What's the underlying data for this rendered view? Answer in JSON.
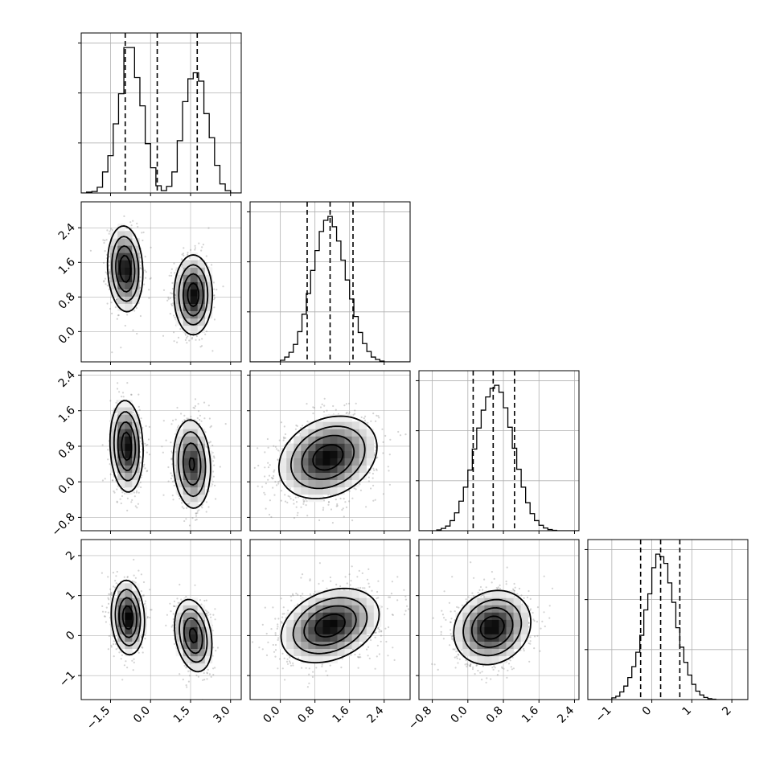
{
  "chart_data": {
    "type": "corner",
    "parameters": 4,
    "grid": true,
    "colors": {
      "line": "#000000",
      "grid": "#b0b0b0",
      "points": "#808080",
      "background": "#ffffff"
    },
    "ranges": [
      [
        -2.6,
        3.4
      ],
      [
        -0.7,
        3.0
      ],
      [
        -1.1,
        2.5
      ],
      [
        -1.6,
        2.4
      ]
    ],
    "ticks": [
      {
        "values": [
          -1.5,
          0.0,
          1.5,
          3.0
        ],
        "labels": [
          "−1.5",
          "0.0",
          "1.5",
          "3.0"
        ]
      },
      {
        "values": [
          0.0,
          0.8,
          1.6,
          2.4
        ],
        "labels": [
          "0.0",
          "0.8",
          "1.6",
          "2.4"
        ]
      },
      {
        "values": [
          -0.8,
          0.0,
          0.8,
          1.6,
          2.4
        ],
        "labels": [
          "−0.8",
          "0.0",
          "0.8",
          "1.6",
          "2.4"
        ]
      },
      {
        "values": [
          -1,
          0,
          1,
          2
        ],
        "labels": [
          "−1",
          "0",
          "1",
          "2"
        ]
      }
    ],
    "quantiles": [
      [
        -0.95,
        0.25,
        1.75
      ],
      [
        0.62,
        1.15,
        1.68
      ],
      [
        0.12,
        0.57,
        1.05
      ],
      [
        -0.28,
        0.22,
        0.7
      ]
    ],
    "histograms": [
      {
        "bins": [
          -2.6,
          -2.4,
          -2.2,
          -2.0,
          -1.8,
          -1.6,
          -1.4,
          -1.2,
          -1.0,
          -0.8,
          -0.6,
          -0.4,
          -0.2,
          0.0,
          0.2,
          0.4,
          0.6,
          0.8,
          1.0,
          1.2,
          1.4,
          1.6,
          1.8,
          2.0,
          2.2,
          2.4,
          2.6,
          2.8,
          3.0,
          3.2,
          3.4
        ],
        "counts": [
          0,
          15,
          25,
          95,
          350,
          620,
          1150,
          1650,
          2420,
          2420,
          1920,
          1450,
          820,
          420,
          120,
          40,
          110,
          350,
          870,
          1520,
          1900,
          2000,
          1860,
          1320,
          920,
          460,
          150,
          40,
          0,
          0
        ]
      },
      {
        "bins": [
          -0.7,
          -0.6,
          -0.5,
          -0.4,
          -0.3,
          -0.2,
          -0.1,
          0.0,
          0.1,
          0.2,
          0.3,
          0.4,
          0.5,
          0.6,
          0.7,
          0.8,
          0.9,
          1.0,
          1.1,
          1.2,
          1.3,
          1.4,
          1.5,
          1.6,
          1.7,
          1.8,
          1.9,
          2.0,
          2.1,
          2.2,
          2.3,
          2.4,
          2.5,
          2.6,
          2.7,
          2.8,
          2.9,
          3.0
        ],
        "counts": [
          0,
          0,
          0,
          0,
          0,
          0,
          0,
          20,
          60,
          120,
          220,
          380,
          600,
          860,
          1150,
          1400,
          1640,
          1780,
          1830,
          1700,
          1520,
          1280,
          1030,
          790,
          570,
          370,
          230,
          130,
          60,
          30,
          10,
          0,
          0,
          0,
          0,
          0,
          0
        ]
      },
      {
        "bins": [
          -1.1,
          -1.0,
          -0.9,
          -0.8,
          -0.7,
          -0.6,
          -0.5,
          -0.4,
          -0.3,
          -0.2,
          -0.1,
          0.0,
          0.1,
          0.2,
          0.3,
          0.4,
          0.5,
          0.6,
          0.7,
          0.8,
          0.9,
          1.0,
          1.1,
          1.2,
          1.3,
          1.4,
          1.5,
          1.6,
          1.7,
          1.8,
          1.9,
          2.0,
          2.1,
          2.2,
          2.3,
          2.4,
          2.5
        ],
        "counts": [
          0,
          0,
          0,
          0,
          10,
          30,
          60,
          130,
          230,
          380,
          560,
          780,
          1050,
          1320,
          1550,
          1720,
          1830,
          1870,
          1780,
          1580,
          1330,
          1060,
          790,
          560,
          360,
          220,
          130,
          70,
          35,
          15,
          5,
          0,
          0,
          0,
          0,
          0
        ]
      },
      {
        "bins": [
          -1.6,
          -1.5,
          -1.4,
          -1.3,
          -1.2,
          -1.1,
          -1.0,
          -0.9,
          -0.8,
          -0.7,
          -0.6,
          -0.5,
          -0.4,
          -0.3,
          -0.2,
          -0.1,
          0.0,
          0.1,
          0.2,
          0.3,
          0.4,
          0.5,
          0.6,
          0.7,
          0.8,
          0.9,
          1.0,
          1.1,
          1.2,
          1.3,
          1.4,
          1.5,
          1.6,
          1.7,
          1.8,
          1.9,
          2.0,
          2.1,
          2.2,
          2.3,
          2.4
        ],
        "counts": [
          0,
          0,
          0,
          0,
          0,
          0,
          20,
          40,
          90,
          160,
          260,
          390,
          560,
          760,
          1060,
          1250,
          1560,
          1720,
          1690,
          1610,
          1380,
          1150,
          850,
          620,
          440,
          290,
          180,
          100,
          55,
          25,
          10,
          5,
          0,
          0,
          0,
          0,
          0,
          0,
          0,
          0
        ]
      }
    ],
    "pairs": [
      {
        "x": 0,
        "y": 1,
        "components": [
          {
            "mx": -0.95,
            "my": 1.45,
            "sx": 0.32,
            "sy": 0.48,
            "rho": -0.1,
            "w": 0.5
          },
          {
            "mx": 1.6,
            "my": 0.85,
            "sx": 0.35,
            "sy": 0.45,
            "rho": 0.0,
            "w": 0.5
          }
        ]
      },
      {
        "x": 0,
        "y": 2,
        "components": [
          {
            "mx": -0.9,
            "my": 0.8,
            "sx": 0.3,
            "sy": 0.5,
            "rho": -0.1,
            "w": 0.5
          },
          {
            "mx": 1.55,
            "my": 0.4,
            "sx": 0.35,
            "sy": 0.5,
            "rho": -0.1,
            "w": 0.5
          }
        ]
      },
      {
        "x": 1,
        "y": 2,
        "components": [
          {
            "mx": 1.1,
            "my": 0.55,
            "sx": 0.55,
            "sy": 0.45,
            "rho": 0.25,
            "w": 1.0
          }
        ]
      },
      {
        "x": 0,
        "y": 3,
        "components": [
          {
            "mx": -0.85,
            "my": 0.45,
            "sx": 0.3,
            "sy": 0.45,
            "rho": -0.1,
            "w": 0.5
          },
          {
            "mx": 1.6,
            "my": 0.0,
            "sx": 0.35,
            "sy": 0.45,
            "rho": -0.25,
            "w": 0.5
          }
        ]
      },
      {
        "x": 1,
        "y": 3,
        "components": [
          {
            "mx": 1.15,
            "my": 0.25,
            "sx": 0.55,
            "sy": 0.45,
            "rho": 0.3,
            "w": 1.0
          }
        ]
      },
      {
        "x": 2,
        "y": 3,
        "components": [
          {
            "mx": 0.55,
            "my": 0.2,
            "sx": 0.42,
            "sy": 0.45,
            "rho": 0.15,
            "w": 1.0
          }
        ]
      }
    ]
  }
}
